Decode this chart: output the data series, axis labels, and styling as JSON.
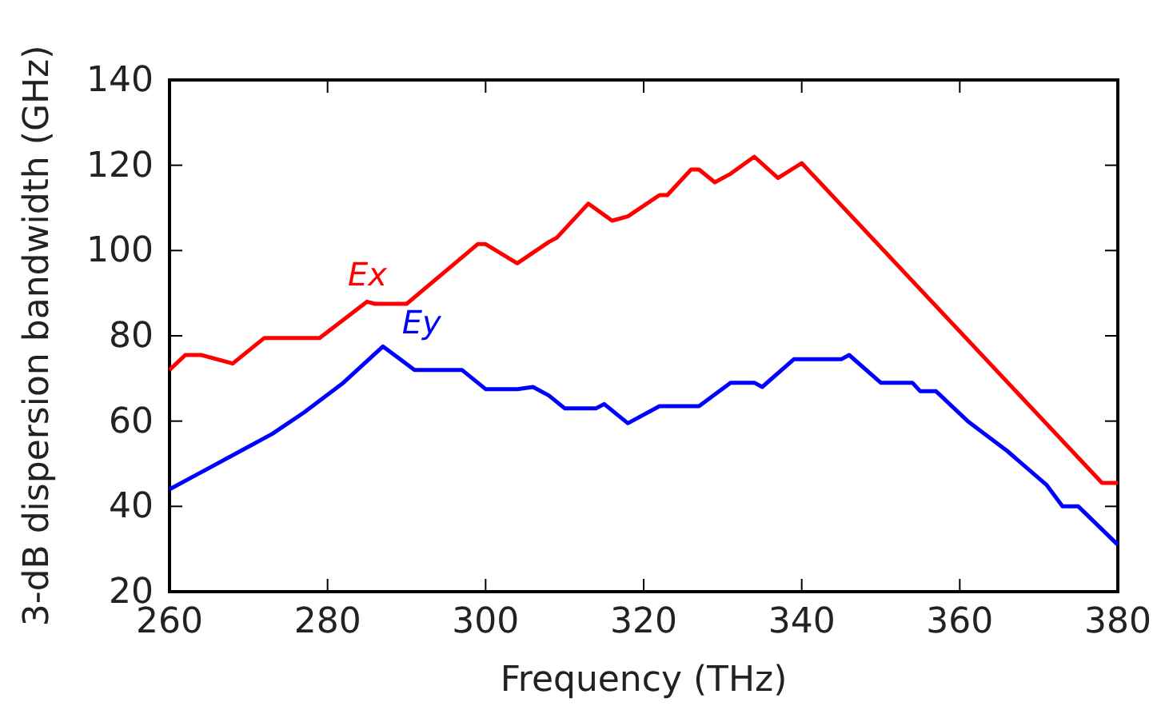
{
  "chart_data": {
    "type": "line",
    "xlabel": "Frequency (THz)",
    "ylabel": "3-dB dispersion bandwidth (GHz)",
    "xlim": [
      260,
      380
    ],
    "xticks": [
      260,
      280,
      300,
      320,
      340,
      360,
      380
    ],
    "ylim": [
      20,
      140
    ],
    "yticks": [
      20,
      40,
      60,
      80,
      100,
      120,
      140
    ],
    "grid": false,
    "marker": "none",
    "line_style": "solid",
    "series": [
      {
        "name": "Ex",
        "color": "#ff0000",
        "x": [
          260,
          262,
          264,
          268,
          272,
          279,
          285,
          286,
          290,
          299,
          300,
          304,
          308,
          309,
          313,
          316,
          318,
          322,
          323,
          326,
          327,
          329,
          331,
          334,
          337,
          340,
          378,
          380
        ],
        "values": [
          72,
          75.5,
          75.5,
          73.5,
          79.5,
          79.5,
          88,
          87.5,
          87.5,
          101.5,
          101.5,
          97,
          102,
          103,
          111,
          107,
          108,
          113,
          113,
          119,
          119,
          116,
          118,
          122,
          117,
          120.5,
          45.5,
          45.5
        ]
      },
      {
        "name": "Ey",
        "color": "#0000ff",
        "x": [
          260,
          265,
          269,
          273,
          277,
          282,
          287,
          291,
          297,
          300,
          304,
          306,
          308,
          310,
          314,
          315,
          318,
          322,
          327,
          331,
          334,
          335,
          339,
          345,
          346,
          350,
          354,
          355,
          357,
          361,
          366,
          371,
          373,
          375,
          380
        ],
        "values": [
          44,
          49,
          53,
          57,
          62,
          69,
          77.5,
          72,
          72,
          67.5,
          67.5,
          68,
          66,
          63,
          63,
          64,
          59.5,
          63.5,
          63.5,
          69,
          69,
          68,
          74.5,
          74.5,
          75.5,
          69,
          69,
          67,
          67,
          60,
          53,
          45,
          40,
          40,
          31
        ]
      }
    ]
  }
}
